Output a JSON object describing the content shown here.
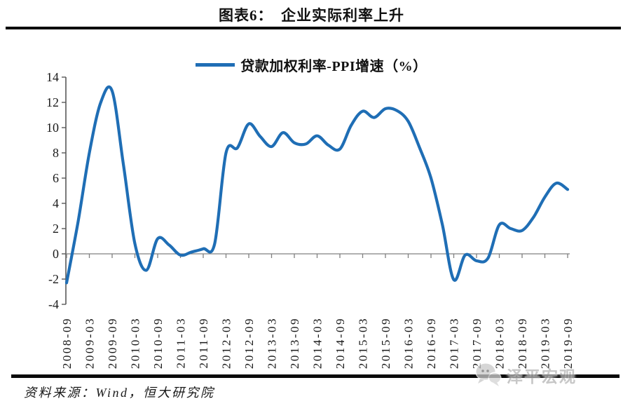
{
  "page": {
    "title": "图表6：　企业实际利率上升",
    "source_note": "资料来源：Wind，恒大研究院",
    "watermark": "泽平宏观"
  },
  "colors": {
    "line": "#1f6eb5",
    "y_axis": "#595959",
    "zero_axis": "#808080",
    "tick_text": "#1a1a1a",
    "rule": "#0a0a0a",
    "watermark_gray": "#b5b5b5"
  },
  "chart_data": {
    "type": "line",
    "title": "图表6： 企业实际利率上升",
    "series_label": "贷款加权利率-PPI增速（%）",
    "legend_position": "top-center",
    "xlabel": "",
    "ylabel": "",
    "ylim": [
      -4,
      14
    ],
    "ytick_step": 2,
    "yticks": [
      14,
      12,
      10,
      8,
      6,
      4,
      2,
      0,
      -2,
      -4
    ],
    "grid": false,
    "zero_line": true,
    "xtick_labels": [
      "2008-09",
      "2009-03",
      "2009-09",
      "2010-03",
      "2010-09",
      "2011-03",
      "2011-09",
      "2012-03",
      "2012-09",
      "2013-03",
      "2013-09",
      "2014-03",
      "2014-09",
      "2015-03",
      "2015-09",
      "2016-03",
      "2016-09",
      "2017-03",
      "2017-09",
      "2018-03",
      "2018-09",
      "2019-03",
      "2019-09"
    ],
    "series": [
      {
        "name": "贷款加权利率-PPI增速（%）",
        "x": [
          "2008-09",
          "2008-12",
          "2009-03",
          "2009-06",
          "2009-09",
          "2009-12",
          "2010-03",
          "2010-06",
          "2010-09",
          "2010-12",
          "2011-03",
          "2011-06",
          "2011-09",
          "2011-12",
          "2012-03",
          "2012-06",
          "2012-09",
          "2012-12",
          "2013-03",
          "2013-06",
          "2013-09",
          "2013-12",
          "2014-03",
          "2014-06",
          "2014-09",
          "2014-12",
          "2015-03",
          "2015-06",
          "2015-09",
          "2015-12",
          "2016-03",
          "2016-06",
          "2016-09",
          "2016-12",
          "2017-03",
          "2017-06",
          "2017-09",
          "2017-12",
          "2018-03",
          "2018-06",
          "2018-09",
          "2018-12",
          "2019-03",
          "2019-06",
          "2019-09"
        ],
        "values": [
          -2.3,
          2.5,
          8.0,
          12.0,
          12.9,
          7.0,
          0.8,
          -1.3,
          1.2,
          0.7,
          -0.1,
          0.15,
          0.4,
          0.8,
          8.0,
          8.4,
          10.3,
          9.3,
          8.5,
          9.6,
          8.8,
          8.7,
          9.35,
          8.6,
          8.3,
          10.2,
          11.3,
          10.8,
          11.5,
          11.35,
          10.5,
          8.4,
          6.0,
          2.3,
          -2.05,
          -0.1,
          -0.55,
          -0.35,
          2.3,
          2.0,
          1.85,
          2.9,
          4.5,
          5.6,
          5.1
        ]
      }
    ]
  }
}
